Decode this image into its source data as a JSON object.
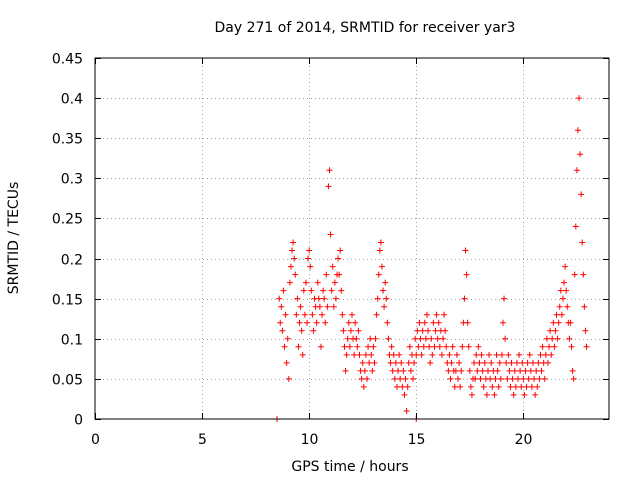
{
  "chart_data": {
    "type": "scatter",
    "title": "Day 271 of 2014, SRMTID for receiver yar3",
    "xlabel": "GPS time / hours",
    "ylabel": "SRMTID / TECUs",
    "xlim": [
      0,
      24
    ],
    "ylim": [
      0,
      0.45
    ],
    "xticks": [
      0,
      5,
      10,
      15,
      20
    ],
    "yticks": [
      0,
      0.05,
      0.1,
      0.15,
      0.2,
      0.25,
      0.3,
      0.35,
      0.4,
      0.45
    ],
    "xtick_labels": [
      "0",
      "5",
      "10",
      "15",
      "20"
    ],
    "ytick_labels": [
      "0",
      "0.05",
      "0.1",
      "0.15",
      "0.2",
      "0.25",
      "0.3",
      "0.35",
      "0.4",
      "0.45"
    ],
    "grid": true,
    "marker": "+",
    "color": "#ff0000",
    "series": [
      {
        "name": "yar3",
        "points": [
          [
            8.5,
            0.0
          ],
          [
            15.0,
            0.0
          ],
          [
            8.6,
            0.15
          ],
          [
            8.65,
            0.12
          ],
          [
            8.7,
            0.14
          ],
          [
            8.75,
            0.11
          ],
          [
            8.8,
            0.16
          ],
          [
            8.85,
            0.09
          ],
          [
            8.9,
            0.13
          ],
          [
            8.95,
            0.07
          ],
          [
            9.0,
            0.1
          ],
          [
            9.05,
            0.05
          ],
          [
            9.1,
            0.17
          ],
          [
            9.15,
            0.19
          ],
          [
            9.2,
            0.21
          ],
          [
            9.25,
            0.22
          ],
          [
            9.3,
            0.2
          ],
          [
            9.35,
            0.18
          ],
          [
            9.4,
            0.13
          ],
          [
            9.45,
            0.15
          ],
          [
            9.5,
            0.09
          ],
          [
            9.55,
            0.12
          ],
          [
            9.6,
            0.14
          ],
          [
            9.65,
            0.11
          ],
          [
            9.7,
            0.08
          ],
          [
            9.75,
            0.16
          ],
          [
            9.8,
            0.13
          ],
          [
            9.85,
            0.17
          ],
          [
            9.9,
            0.12
          ],
          [
            9.95,
            0.2
          ],
          [
            10.0,
            0.21
          ],
          [
            10.05,
            0.19
          ],
          [
            10.1,
            0.16
          ],
          [
            10.15,
            0.13
          ],
          [
            10.2,
            0.11
          ],
          [
            10.25,
            0.15
          ],
          [
            10.3,
            0.14
          ],
          [
            10.35,
            0.12
          ],
          [
            10.4,
            0.17
          ],
          [
            10.45,
            0.15
          ],
          [
            10.5,
            0.14
          ],
          [
            10.55,
            0.09
          ],
          [
            10.6,
            0.13
          ],
          [
            10.65,
            0.16
          ],
          [
            10.7,
            0.15
          ],
          [
            10.75,
            0.12
          ],
          [
            10.8,
            0.18
          ],
          [
            10.85,
            0.14
          ],
          [
            10.9,
            0.29
          ],
          [
            10.95,
            0.31
          ],
          [
            11.0,
            0.23
          ],
          [
            11.05,
            0.16
          ],
          [
            11.1,
            0.19
          ],
          [
            11.15,
            0.14
          ],
          [
            11.2,
            0.17
          ],
          [
            11.25,
            0.15
          ],
          [
            11.3,
            0.18
          ],
          [
            11.35,
            0.2
          ],
          [
            11.4,
            0.18
          ],
          [
            11.45,
            0.21
          ],
          [
            11.5,
            0.16
          ],
          [
            11.55,
            0.13
          ],
          [
            11.6,
            0.11
          ],
          [
            11.65,
            0.09
          ],
          [
            11.7,
            0.06
          ],
          [
            11.75,
            0.08
          ],
          [
            11.8,
            0.1
          ],
          [
            11.85,
            0.12
          ],
          [
            11.9,
            0.09
          ],
          [
            11.95,
            0.11
          ],
          [
            12.0,
            0.13
          ],
          [
            12.05,
            0.1
          ],
          [
            12.1,
            0.08
          ],
          [
            12.15,
            0.12
          ],
          [
            12.2,
            0.1
          ],
          [
            12.25,
            0.09
          ],
          [
            12.3,
            0.11
          ],
          [
            12.35,
            0.08
          ],
          [
            12.4,
            0.06
          ],
          [
            12.45,
            0.05
          ],
          [
            12.5,
            0.07
          ],
          [
            12.55,
            0.04
          ],
          [
            12.6,
            0.06
          ],
          [
            12.65,
            0.08
          ],
          [
            12.7,
            0.05
          ],
          [
            12.75,
            0.09
          ],
          [
            12.8,
            0.07
          ],
          [
            12.85,
            0.1
          ],
          [
            12.9,
            0.08
          ],
          [
            12.95,
            0.06
          ],
          [
            13.0,
            0.09
          ],
          [
            13.05,
            0.07
          ],
          [
            13.1,
            0.1
          ],
          [
            13.15,
            0.13
          ],
          [
            13.2,
            0.15
          ],
          [
            13.25,
            0.18
          ],
          [
            13.3,
            0.21
          ],
          [
            13.35,
            0.22
          ],
          [
            13.4,
            0.19
          ],
          [
            13.45,
            0.16
          ],
          [
            13.5,
            0.14
          ],
          [
            13.55,
            0.17
          ],
          [
            13.6,
            0.15
          ],
          [
            13.65,
            0.12
          ],
          [
            13.7,
            0.1
          ],
          [
            13.75,
            0.08
          ],
          [
            13.8,
            0.07
          ],
          [
            13.85,
            0.09
          ],
          [
            13.9,
            0.06
          ],
          [
            13.95,
            0.08
          ],
          [
            14.0,
            0.05
          ],
          [
            14.05,
            0.07
          ],
          [
            14.1,
            0.04
          ],
          [
            14.15,
            0.06
          ],
          [
            14.2,
            0.08
          ],
          [
            14.25,
            0.05
          ],
          [
            14.3,
            0.07
          ],
          [
            14.35,
            0.04
          ],
          [
            14.4,
            0.06
          ],
          [
            14.45,
            0.03
          ],
          [
            14.5,
            0.05
          ],
          [
            14.55,
            0.01
          ],
          [
            14.6,
            0.04
          ],
          [
            14.65,
            0.07
          ],
          [
            14.7,
            0.09
          ],
          [
            14.75,
            0.06
          ],
          [
            14.8,
            0.08
          ],
          [
            14.85,
            0.05
          ],
          [
            14.9,
            0.07
          ],
          [
            14.95,
            0.1
          ],
          [
            15.0,
            0.08
          ],
          [
            15.05,
            0.11
          ],
          [
            15.1,
            0.09
          ],
          [
            15.15,
            0.12
          ],
          [
            15.2,
            0.1
          ],
          [
            15.25,
            0.08
          ],
          [
            15.3,
            0.11
          ],
          [
            15.35,
            0.09
          ],
          [
            15.4,
            0.12
          ],
          [
            15.45,
            0.1
          ],
          [
            15.5,
            0.13
          ],
          [
            15.55,
            0.11
          ],
          [
            15.6,
            0.09
          ],
          [
            15.65,
            0.07
          ],
          [
            15.7,
            0.1
          ],
          [
            15.75,
            0.08
          ],
          [
            15.8,
            0.12
          ],
          [
            15.85,
            0.09
          ],
          [
            15.9,
            0.11
          ],
          [
            15.95,
            0.13
          ],
          [
            16.0,
            0.1
          ],
          [
            16.05,
            0.12
          ],
          [
            16.1,
            0.09
          ],
          [
            16.15,
            0.11
          ],
          [
            16.2,
            0.08
          ],
          [
            16.25,
            0.1
          ],
          [
            16.3,
            0.13
          ],
          [
            16.35,
            0.11
          ],
          [
            16.4,
            0.09
          ],
          [
            16.45,
            0.07
          ],
          [
            16.5,
            0.06
          ],
          [
            16.55,
            0.08
          ],
          [
            16.6,
            0.05
          ],
          [
            16.65,
            0.07
          ],
          [
            16.7,
            0.09
          ],
          [
            16.75,
            0.06
          ],
          [
            16.8,
            0.04
          ],
          [
            16.85,
            0.06
          ],
          [
            16.9,
            0.08
          ],
          [
            16.95,
            0.05
          ],
          [
            17.0,
            0.07
          ],
          [
            17.05,
            0.04
          ],
          [
            17.1,
            0.06
          ],
          [
            17.15,
            0.09
          ],
          [
            17.2,
            0.12
          ],
          [
            17.25,
            0.15
          ],
          [
            17.3,
            0.21
          ],
          [
            17.35,
            0.18
          ],
          [
            17.4,
            0.12
          ],
          [
            17.45,
            0.09
          ],
          [
            17.5,
            0.06
          ],
          [
            17.55,
            0.04
          ],
          [
            17.6,
            0.03
          ],
          [
            17.65,
            0.05
          ],
          [
            17.7,
            0.07
          ],
          [
            17.75,
            0.05
          ],
          [
            17.8,
            0.08
          ],
          [
            17.85,
            0.06
          ],
          [
            17.9,
            0.09
          ],
          [
            17.95,
            0.07
          ],
          [
            18.0,
            0.05
          ],
          [
            18.05,
            0.08
          ],
          [
            18.1,
            0.06
          ],
          [
            18.15,
            0.04
          ],
          [
            18.2,
            0.07
          ],
          [
            18.25,
            0.05
          ],
          [
            18.3,
            0.03
          ],
          [
            18.35,
            0.06
          ],
          [
            18.4,
            0.08
          ],
          [
            18.45,
            0.05
          ],
          [
            18.5,
            0.07
          ],
          [
            18.55,
            0.04
          ],
          [
            18.6,
            0.06
          ],
          [
            18.65,
            0.03
          ],
          [
            18.7,
            0.05
          ],
          [
            18.75,
            0.08
          ],
          [
            18.8,
            0.06
          ],
          [
            18.85,
            0.04
          ],
          [
            18.9,
            0.07
          ],
          [
            18.95,
            0.05
          ],
          [
            19.0,
            0.08
          ],
          [
            19.05,
            0.12
          ],
          [
            19.1,
            0.15
          ],
          [
            19.15,
            0.1
          ],
          [
            19.2,
            0.07
          ],
          [
            19.25,
            0.05
          ],
          [
            19.3,
            0.08
          ],
          [
            19.35,
            0.06
          ],
          [
            19.4,
            0.04
          ],
          [
            19.45,
            0.07
          ],
          [
            19.5,
            0.05
          ],
          [
            19.55,
            0.03
          ],
          [
            19.6,
            0.06
          ],
          [
            19.65,
            0.04
          ],
          [
            19.7,
            0.07
          ],
          [
            19.75,
            0.05
          ],
          [
            19.8,
            0.08
          ],
          [
            19.85,
            0.06
          ],
          [
            19.9,
            0.04
          ],
          [
            19.95,
            0.07
          ],
          [
            20.0,
            0.05
          ],
          [
            20.05,
            0.03
          ],
          [
            20.1,
            0.06
          ],
          [
            20.15,
            0.04
          ],
          [
            20.2,
            0.07
          ],
          [
            20.25,
            0.05
          ],
          [
            20.3,
            0.08
          ],
          [
            20.35,
            0.06
          ],
          [
            20.4,
            0.04
          ],
          [
            20.45,
            0.07
          ],
          [
            20.5,
            0.05
          ],
          [
            20.55,
            0.03
          ],
          [
            20.6,
            0.06
          ],
          [
            20.65,
            0.04
          ],
          [
            20.7,
            0.07
          ],
          [
            20.75,
            0.05
          ],
          [
            20.8,
            0.08
          ],
          [
            20.85,
            0.06
          ],
          [
            20.9,
            0.09
          ],
          [
            20.95,
            0.07
          ],
          [
            21.0,
            0.05
          ],
          [
            21.05,
            0.08
          ],
          [
            21.1,
            0.1
          ],
          [
            21.15,
            0.07
          ],
          [
            21.2,
            0.09
          ],
          [
            21.25,
            0.11
          ],
          [
            21.3,
            0.08
          ],
          [
            21.35,
            0.1
          ],
          [
            21.4,
            0.12
          ],
          [
            21.45,
            0.09
          ],
          [
            21.5,
            0.11
          ],
          [
            21.55,
            0.13
          ],
          [
            21.6,
            0.1
          ],
          [
            21.65,
            0.12
          ],
          [
            21.7,
            0.14
          ],
          [
            21.75,
            0.16
          ],
          [
            21.8,
            0.13
          ],
          [
            21.85,
            0.15
          ],
          [
            21.9,
            0.17
          ],
          [
            21.95,
            0.19
          ],
          [
            22.0,
            0.16
          ],
          [
            22.05,
            0.14
          ],
          [
            22.1,
            0.12
          ],
          [
            22.15,
            0.1
          ],
          [
            22.2,
            0.12
          ],
          [
            22.25,
            0.09
          ],
          [
            22.3,
            0.06
          ],
          [
            22.35,
            0.05
          ],
          [
            22.4,
            0.18
          ],
          [
            22.45,
            0.24
          ],
          [
            22.5,
            0.31
          ],
          [
            22.55,
            0.36
          ],
          [
            22.6,
            0.4
          ],
          [
            22.65,
            0.33
          ],
          [
            22.7,
            0.28
          ],
          [
            22.75,
            0.22
          ],
          [
            22.8,
            0.18
          ],
          [
            22.85,
            0.14
          ],
          [
            22.9,
            0.11
          ],
          [
            22.95,
            0.09
          ]
        ]
      }
    ]
  }
}
